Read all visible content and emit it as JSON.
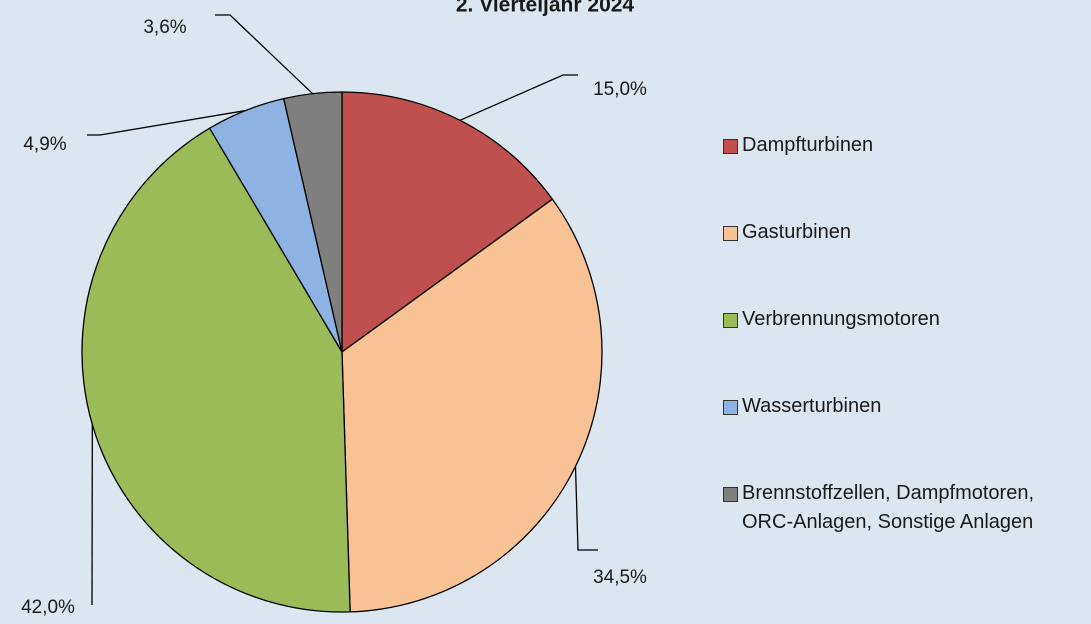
{
  "chart_data": {
    "type": "pie",
    "title": "2. Vierteljahr 2024",
    "categories": [
      "Dampfturbinen",
      "Gasturbinen",
      "Verbrennungsmotoren",
      "Wasserturbinen",
      "Brennstoffzellen, Dampfmotoren, ORC-Anlagen, Sonstige Anlagen"
    ],
    "values": [
      15.0,
      34.5,
      42.0,
      4.9,
      3.6
    ],
    "value_labels": [
      "15,0%",
      "34,5%",
      "42,0%",
      "4,9%",
      "3,6%"
    ],
    "colors": [
      "#c0504d",
      "#f9c295",
      "#9bbb59",
      "#8db3e2",
      "#7f7f7f"
    ],
    "legend": "right"
  }
}
